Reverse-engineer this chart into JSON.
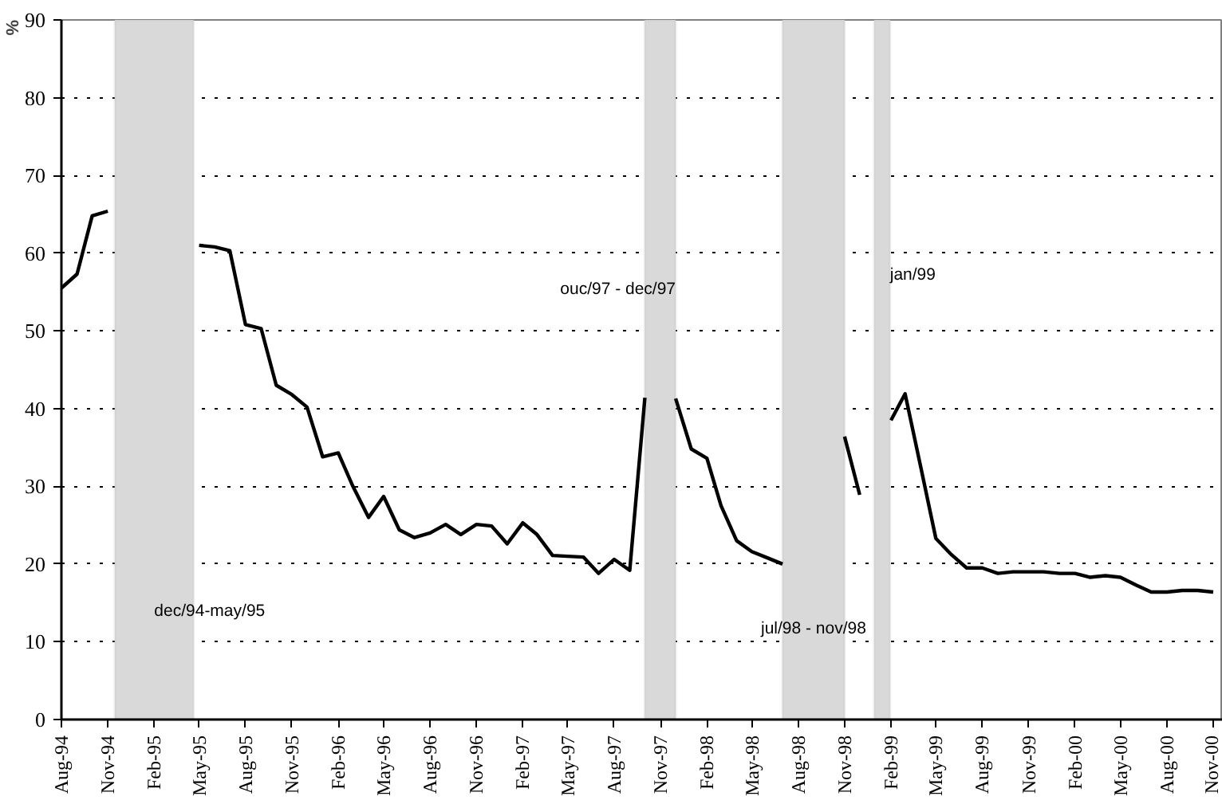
{
  "chart_data": {
    "type": "line",
    "ylabel": "%",
    "x": [
      "1994-08",
      "1994-09",
      "1994-10",
      "1994-11",
      "1994-12",
      "1995-01",
      "1995-02",
      "1995-03",
      "1995-04",
      "1995-05",
      "1995-06",
      "1995-07",
      "1995-08",
      "1995-09",
      "1995-10",
      "1995-11",
      "1995-12",
      "1996-01",
      "1996-02",
      "1996-03",
      "1996-04",
      "1996-05",
      "1996-06",
      "1996-07",
      "1996-08",
      "1996-09",
      "1996-10",
      "1996-11",
      "1996-12",
      "1997-01",
      "1997-02",
      "1997-03",
      "1997-04",
      "1997-05",
      "1997-06",
      "1997-07",
      "1997-08",
      "1997-09",
      "1997-10",
      "1997-11",
      "1997-12",
      "1998-01",
      "1998-02",
      "1998-03",
      "1998-04",
      "1998-05",
      "1998-06",
      "1998-07",
      "1998-08",
      "1998-09",
      "1998-10",
      "1998-11",
      "1998-12",
      "1999-01",
      "1999-02",
      "1999-03",
      "1999-04",
      "1999-05",
      "1999-06",
      "1999-07",
      "1999-08",
      "1999-09",
      "1999-10",
      "1999-11",
      "1999-12",
      "2000-01",
      "2000-02",
      "2000-03",
      "2000-04",
      "2000-05",
      "2000-06",
      "2000-07",
      "2000-08",
      "2000-09",
      "2000-10",
      "2000-11"
    ],
    "series": [
      {
        "color": "#000000",
        "values": [
          55.5,
          57.3,
          64.8,
          65.4,
          null,
          null,
          null,
          null,
          null,
          61.0,
          60.8,
          60.3,
          50.8,
          50.3,
          43.0,
          41.8,
          40.2,
          33.8,
          34.3,
          30.0,
          26.0,
          28.7,
          24.4,
          23.4,
          24.0,
          25.1,
          23.8,
          25.1,
          24.9,
          22.6,
          25.3,
          23.8,
          21.1,
          21.0,
          20.9,
          18.8,
          20.6,
          19.2,
          41.4,
          null,
          41.3,
          34.8,
          33.6,
          27.5,
          23.0,
          21.6,
          20.8,
          20.0,
          null,
          null,
          null,
          36.4,
          28.9,
          null,
          38.5,
          41.9,
          32.5,
          23.3,
          21.2,
          19.5,
          19.5,
          18.8,
          19.0,
          19.0,
          19.0,
          18.8,
          18.8,
          18.3,
          18.5,
          18.3,
          17.3,
          16.4,
          16.4,
          16.6,
          16.6,
          16.4
        ]
      }
    ],
    "xlim": [
      "1994-08-01",
      "2000-11-20"
    ],
    "ylim": [
      0,
      90
    ],
    "yticks": [
      0,
      10,
      20,
      30,
      40,
      50,
      60,
      70,
      80,
      90
    ],
    "xticks": [
      {
        "value": "1994-08",
        "label": "Aug-94"
      },
      {
        "value": "1994-11",
        "label": "Nov-94"
      },
      {
        "value": "1995-02",
        "label": "Feb-95"
      },
      {
        "value": "1995-05",
        "label": "May-95"
      },
      {
        "value": "1995-08",
        "label": "Aug-95"
      },
      {
        "value": "1995-11",
        "label": "Nov-95"
      },
      {
        "value": "1996-02",
        "label": "Feb-96"
      },
      {
        "value": "1996-05",
        "label": "May-96"
      },
      {
        "value": "1996-08",
        "label": "Aug-96"
      },
      {
        "value": "1996-11",
        "label": "Nov-96"
      },
      {
        "value": "1997-02",
        "label": "Feb-97"
      },
      {
        "value": "1997-05",
        "label": "May-97"
      },
      {
        "value": "1997-08",
        "label": "Aug-97"
      },
      {
        "value": "1997-11",
        "label": "Nov-97"
      },
      {
        "value": "1998-02",
        "label": "Feb-98"
      },
      {
        "value": "1998-05",
        "label": "May-98"
      },
      {
        "value": "1998-08",
        "label": "Aug-98"
      },
      {
        "value": "1998-11",
        "label": "Nov-98"
      },
      {
        "value": "1999-02",
        "label": "Feb-99"
      },
      {
        "value": "1999-05",
        "label": "May-99"
      },
      {
        "value": "1999-08",
        "label": "Aug-99"
      },
      {
        "value": "1999-11",
        "label": "Nov-99"
      },
      {
        "value": "2000-02",
        "label": "Feb-00"
      },
      {
        "value": "2000-05",
        "label": "May-00"
      },
      {
        "value": "2000-08",
        "label": "Aug-00"
      },
      {
        "value": "2000-11",
        "label": "Nov-00"
      }
    ],
    "grid": "y",
    "bands": [
      {
        "axis": "x",
        "from": "1994-11-15",
        "to": "1995-04-20",
        "label": "dec/94-may/95",
        "color": "#d9d9d9"
      },
      {
        "axis": "x",
        "from": "1997-10-01",
        "to": "1997-12-01",
        "label": "ouc/97 - dec/97",
        "color": "#d9d9d9"
      },
      {
        "axis": "x",
        "from": "1998-07-01",
        "to": "1998-11-01",
        "label": "jul/98 - nov/98",
        "color": "#d9d9d9"
      },
      {
        "axis": "x",
        "from": "1998-12-30",
        "to": "1999-01-30",
        "label": "jan/99",
        "color": "#d9d9d9"
      }
    ]
  }
}
